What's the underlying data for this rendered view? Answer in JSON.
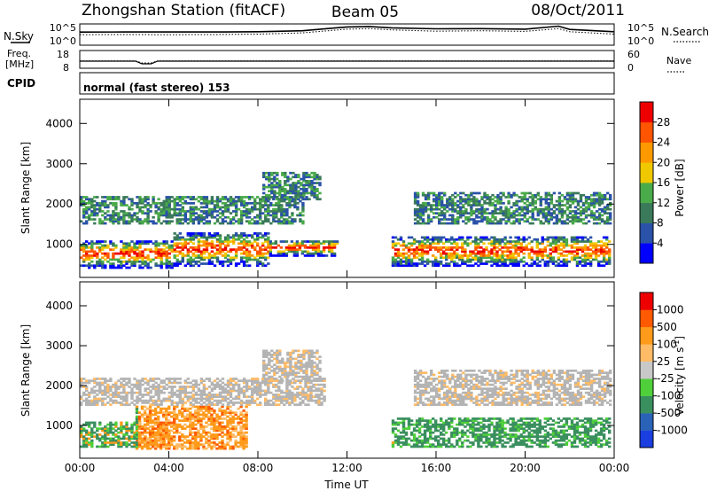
{
  "header": {
    "station": "Zhongshan Station (fitACF)",
    "beam": "Beam 05",
    "date": "08/Oct/2011"
  },
  "top_panels": {
    "sky_label": "N.Sky",
    "sky_ticks": [
      "10^5",
      "10^0"
    ],
    "search_label": "N.Search",
    "search_ticks": [
      "10^5",
      "10^0"
    ],
    "freq_label_1": "Freq.",
    "freq_label_2": "[MHz]",
    "freq_ticks": [
      "18",
      "8"
    ],
    "nave_label": "Nave",
    "nave_ticks": [
      "60",
      "0"
    ],
    "cpid_label": "CPID",
    "cpid_value": "normal (fast stereo) 153"
  },
  "colors": {
    "power": [
      "#0000ff",
      "#2a52a8",
      "#3a7a5a",
      "#4aab4a",
      "#f0c800",
      "#ff9900",
      "#ff5500",
      "#ee0000"
    ],
    "velocity": [
      "#ee0000",
      "#ff5a00",
      "#ff9a1a",
      "#ffbb66",
      "#c8c8c8",
      "#4fcf3a",
      "#3a8f5f",
      "#2a62b8",
      "#1a3ee0"
    ],
    "ground_scatter": "#b4b4b4"
  },
  "chart_data": [
    {
      "type": "line",
      "panel": "N.Sky / N.Search",
      "x": [
        0,
        2,
        4,
        6,
        8,
        10,
        12,
        13,
        14,
        16,
        18,
        20,
        21.5,
        22,
        24
      ],
      "series": [
        {
          "values": [
            1200,
            1300,
            1250,
            1300,
            1500,
            2500,
            20000,
            25000,
            12000,
            7000,
            8000,
            6000,
            30000,
            5000,
            1500
          ]
        },
        {
          "values": [
            300,
            320,
            300,
            310,
            400,
            800,
            6000,
            8000,
            4000,
            2000,
            2500,
            1800,
            8000,
            1500,
            400
          ]
        }
      ]
    },
    {
      "type": "line",
      "panel": "Freq. / Nave",
      "x": [
        0,
        2.5,
        2.8,
        3.2,
        3.5,
        24
      ],
      "series": [
        {
          "values": [
            12,
            12,
            10.5,
            10.5,
            12,
            12
          ]
        },
        {
          "values": [
            25,
            25,
            18,
            18,
            25,
            25
          ]
        }
      ]
    },
    {
      "type": "heatmap",
      "panel": "Power",
      "xlabel": "",
      "ylabel": "Slant Range [km]",
      "x_ticks": [
        "00:00",
        "04:00",
        "08:00",
        "12:00",
        "16:00",
        "20:00",
        "00:00"
      ],
      "x_range_hours": [
        0,
        24
      ],
      "y_ticks": [
        1000,
        2000,
        3000,
        4000
      ],
      "ylim": [
        180,
        4600
      ],
      "colorbar_label": "Power [dB]",
      "colorbar_ticks": [
        4,
        8,
        12,
        16,
        20,
        24,
        28
      ],
      "bands": [
        {
          "t0": 0.0,
          "t1": 4.2,
          "r0": 400,
          "r1": 1100
        },
        {
          "t0": 4.2,
          "t1": 8.5,
          "r0": 450,
          "r1": 1300
        },
        {
          "t0": 8.5,
          "t1": 11.5,
          "r0": 700,
          "r1": 1100
        },
        {
          "t0": 0.0,
          "t1": 10.0,
          "r0": 1500,
          "r1": 2200
        },
        {
          "t0": 8.2,
          "t1": 10.8,
          "r0": 2100,
          "r1": 2800
        },
        {
          "t0": 14.0,
          "t1": 23.8,
          "r0": 450,
          "r1": 1200
        },
        {
          "t0": 15.0,
          "t1": 23.8,
          "r0": 1500,
          "r1": 2300
        }
      ]
    },
    {
      "type": "heatmap",
      "panel": "Velocity",
      "xlabel": "Time UT",
      "ylabel": "Slant Range [km]",
      "x_ticks": [
        "00:00",
        "04:00",
        "08:00",
        "12:00",
        "16:00",
        "20:00",
        "00:00"
      ],
      "x_range_hours": [
        0,
        24
      ],
      "y_ticks": [
        1000,
        2000,
        3000,
        4000
      ],
      "ylim": [
        180,
        4600
      ],
      "colorbar_label": "Velocity [m s^-1]",
      "colorbar_ticks": [
        1000,
        500,
        100,
        25,
        -25,
        -100,
        -500,
        -1000
      ],
      "bands": [
        {
          "t0": 0.0,
          "t1": 4.0,
          "r0": 450,
          "r1": 1100
        },
        {
          "t0": 2.5,
          "t1": 7.5,
          "r0": 400,
          "r1": 1500
        },
        {
          "t0": 0.0,
          "t1": 11.0,
          "r0": 1500,
          "r1": 2200
        },
        {
          "t0": 8.2,
          "t1": 10.8,
          "r0": 2100,
          "r1": 2900
        },
        {
          "t0": 14.0,
          "t1": 23.8,
          "r0": 450,
          "r1": 1200
        },
        {
          "t0": 15.0,
          "t1": 23.8,
          "r0": 1500,
          "r1": 2400
        }
      ]
    }
  ]
}
